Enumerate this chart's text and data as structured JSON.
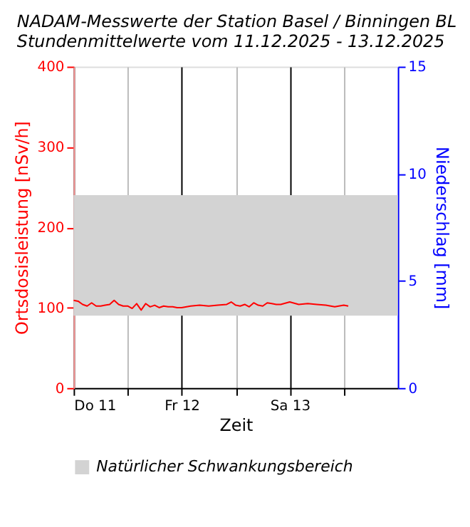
{
  "chart_data": {
    "type": "line",
    "title": "NADAM-Messwerte der Station Basel / Binningen BL",
    "subtitle": "Stundenmittelwerte vom 11.12.2025 - 13.12.2025",
    "xlabel": "Zeit",
    "ylabel": "Ortsdosisleistung [nSv/h]",
    "y2label": "Niederschlag [mm]",
    "x": [
      "2025-12-11T00:00",
      "2025-12-11T01:00",
      "2025-12-11T02:00",
      "2025-12-11T03:00",
      "2025-12-11T04:00",
      "2025-12-11T05:00",
      "2025-12-11T06:00",
      "2025-12-11T07:00",
      "2025-12-11T08:00",
      "2025-12-11T09:00",
      "2025-12-11T10:00",
      "2025-12-11T11:00",
      "2025-12-11T12:00",
      "2025-12-11T13:00",
      "2025-12-11T14:00",
      "2025-12-11T15:00",
      "2025-12-11T16:00",
      "2025-12-11T17:00",
      "2025-12-11T18:00",
      "2025-12-11T19:00",
      "2025-12-11T20:00",
      "2025-12-11T21:00",
      "2025-12-11T22:00",
      "2025-12-11T23:00",
      "2025-12-12T00:00",
      "2025-12-12T02:00",
      "2025-12-12T04:00",
      "2025-12-12T06:00",
      "2025-12-12T08:00",
      "2025-12-12T10:00",
      "2025-12-12T11:00",
      "2025-12-12T12:00",
      "2025-12-12T13:00",
      "2025-12-12T14:00",
      "2025-12-12T15:00",
      "2025-12-12T16:00",
      "2025-12-12T17:00",
      "2025-12-12T18:00",
      "2025-12-12T19:00",
      "2025-12-12T20:00",
      "2025-12-12T21:00",
      "2025-12-12T22:00",
      "2025-12-13T00:00",
      "2025-12-13T02:00",
      "2025-12-13T04:00",
      "2025-12-13T06:00",
      "2025-12-13T08:00",
      "2025-12-13T10:00",
      "2025-12-13T12:00",
      "2025-12-13T13:00"
    ],
    "series": [
      {
        "color": "#ff0000",
        "values": [
          109,
          108,
          104,
          102,
          106,
          102,
          102,
          103,
          104,
          109,
          104,
          102,
          102,
          99,
          105,
          97,
          105,
          101,
          103,
          100,
          102,
          101,
          101,
          100,
          100,
          102,
          103,
          102,
          103,
          104,
          107,
          103,
          102,
          104,
          101,
          106,
          103,
          102,
          106,
          105,
          104,
          104,
          107,
          104,
          105,
          104,
          103,
          101,
          103,
          102
        ]
      }
    ],
    "xlim": [
      "2025-12-11T00:00",
      "2025-12-14T00:00"
    ],
    "xticks": [
      {
        "value": "2025-12-11T00:00",
        "label": "Do 11"
      },
      {
        "value": "2025-12-11T12:00",
        "label": null
      },
      {
        "value": "2025-12-12T00:00",
        "label": "Fr 12"
      },
      {
        "value": "2025-12-12T12:00",
        "label": null
      },
      {
        "value": "2025-12-13T00:00",
        "label": "Sa 13"
      },
      {
        "value": "2025-12-13T12:00",
        "label": null
      }
    ],
    "ylim": [
      0,
      400
    ],
    "yticks": [
      0,
      100,
      200,
      300,
      400
    ],
    "y2lim": [
      0,
      15
    ],
    "y2ticks": [
      0,
      5,
      10,
      15
    ],
    "bands": [
      {
        "axis": "y",
        "from": 90,
        "to": 240,
        "label": "Natürlicher Schwankungsbereich",
        "color": "#d3d3d3"
      }
    ],
    "grid": "x",
    "legend": "bottom",
    "line_style": "solid",
    "marker": "none"
  }
}
